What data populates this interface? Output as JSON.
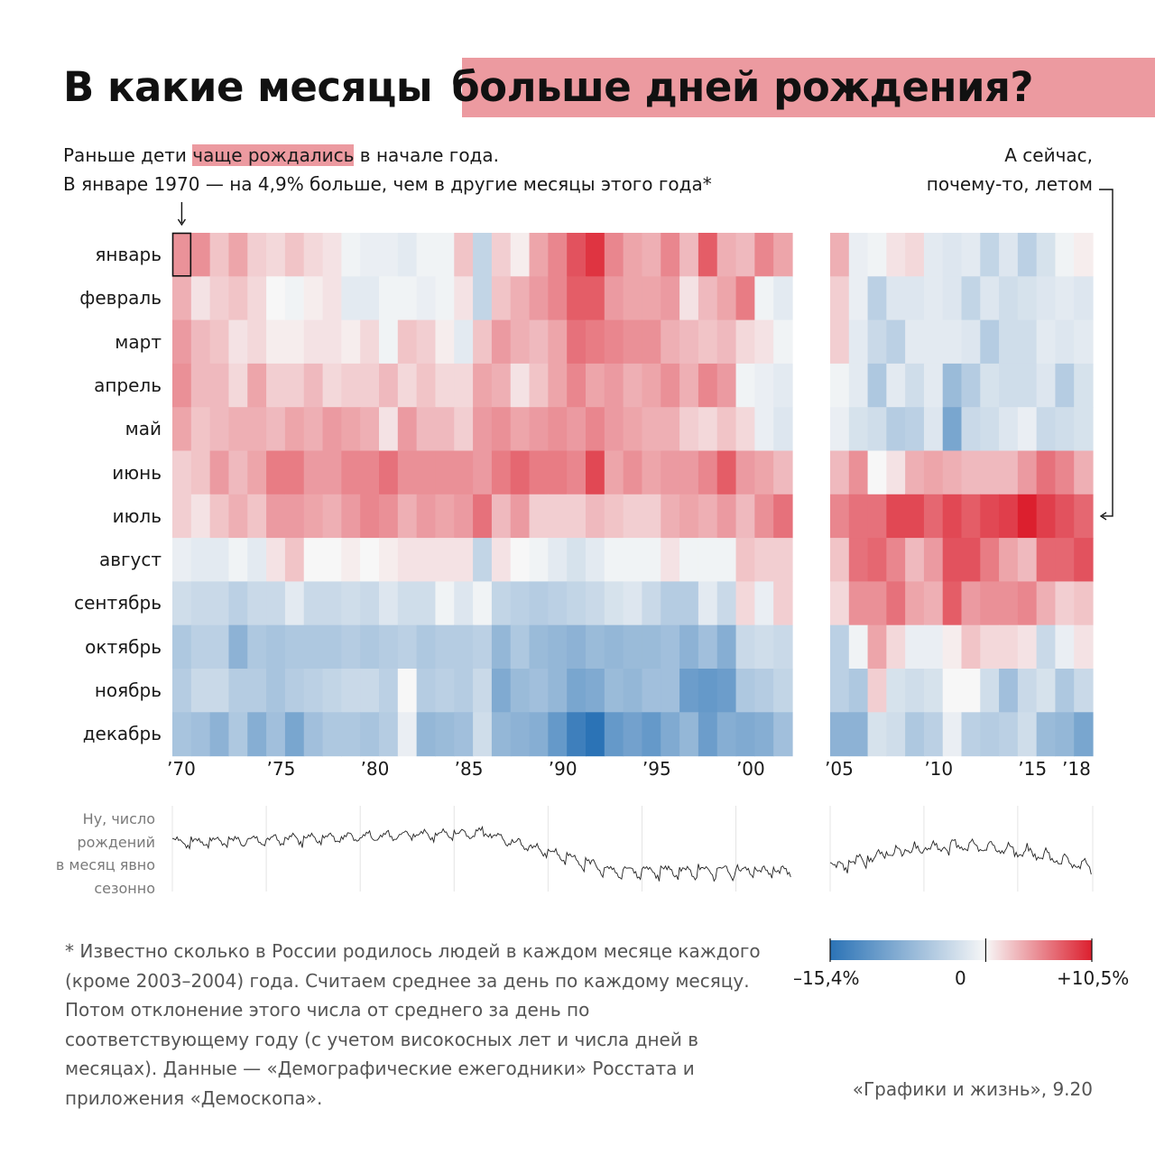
{
  "title": {
    "plain": "В какие месяцы",
    "highlight": "больше дней рождения?"
  },
  "subtitle_left": {
    "line1_a": "Раньше дети ",
    "line1_hl": "чаще рождались",
    "line1_b": " в начале года.",
    "line2": "В январе 1970 — на 4,9% больше, чем в другие месяцы этого года*"
  },
  "subtitle_right": {
    "line1": "А сейчас,",
    "line2": "почему-то, летом"
  },
  "sparkline_note": [
    "Ну, число",
    "рождений",
    "в месяц явно",
    "сезонно"
  ],
  "footnote": "* Известно сколько в России родилось людей в каждом месяце каждого (кроме 2003–2004) года. Считаем среднее за день по каждому месяцу. Потом отклонение этого числа от среднего за день по соответствующему году (с учетом високосных лет и числа дней в месяцах). Данные — «Демографические ежегодники» Росстата и приложения «Демоскопа».",
  "credit": "«Графики и жизнь», 9.20",
  "colors": {
    "negative": "#2b73b6",
    "neutral": "#f7f7f7",
    "positive": "#dc1f2e",
    "highlight": "#ec9aa0"
  },
  "chart_data": {
    "type": "heatmap",
    "rows": [
      "январь",
      "февраль",
      "март",
      "апрель",
      "май",
      "июнь",
      "июль",
      "август",
      "сентябрь",
      "октябрь",
      "ноябрь",
      "декабрь"
    ],
    "unit": "%",
    "color_range": [
      -15.4,
      10.5
    ],
    "legend_labels": [
      "–15,4%",
      "0",
      "+10,5%"
    ],
    "highlight_cell": {
      "year": 1970,
      "month": "январь",
      "value": 4.9
    },
    "panels": [
      {
        "years": [
          1970,
          1971,
          1972,
          1973,
          1974,
          1975,
          1976,
          1977,
          1978,
          1979,
          1980,
          1981,
          1982,
          1983,
          1984,
          1985,
          1986,
          1987,
          1988,
          1989,
          1990,
          1991,
          1992,
          1993,
          1994,
          1995,
          1996,
          1997,
          1998,
          1999,
          2000,
          2001,
          2002
        ],
        "x_ticks": [
          {
            "year": 1970,
            "label": "’70"
          },
          {
            "year": 1975,
            "label": "’75"
          },
          {
            "year": 1980,
            "label": "’80"
          },
          {
            "year": 1985,
            "label": "’85"
          },
          {
            "year": 1990,
            "label": "’90"
          },
          {
            "year": 1995,
            "label": "’95"
          },
          {
            "year": 2000,
            "label": "’00"
          }
        ],
        "values": [
          [
            4.9,
            5.0,
            2.5,
            4.0,
            2.0,
            1.5,
            2.5,
            1.5,
            1.0,
            -0.5,
            -1.0,
            -1.0,
            -1.5,
            -0.5,
            -0.5,
            2.5,
            -4.0,
            2.0,
            0.5,
            4.0,
            5.5,
            8.0,
            9.5,
            5.5,
            4.0,
            3.5,
            5.5,
            3.0,
            7.5,
            3.5,
            3.0,
            5.5,
            4.0
          ],
          [
            3.5,
            1.0,
            2.0,
            2.5,
            1.5,
            0.0,
            -0.5,
            0.5,
            1.0,
            -1.5,
            -1.5,
            -0.5,
            -0.5,
            -1.0,
            -0.5,
            1.0,
            -4.0,
            2.5,
            3.5,
            4.5,
            5.5,
            7.5,
            7.5,
            4.5,
            4.0,
            4.0,
            4.5,
            1.0,
            3.0,
            4.0,
            6.0,
            -0.5,
            -1.5
          ],
          [
            4.5,
            3.0,
            2.5,
            1.0,
            1.5,
            0.5,
            0.5,
            1.0,
            1.0,
            0.5,
            1.5,
            -0.5,
            2.5,
            2.0,
            0.5,
            -1.5,
            2.5,
            4.5,
            3.5,
            3.0,
            4.0,
            6.5,
            6.0,
            5.5,
            5.0,
            5.0,
            3.5,
            3.0,
            2.5,
            3.0,
            1.5,
            1.0,
            -0.5
          ],
          [
            5.0,
            3.0,
            3.0,
            1.5,
            4.0,
            2.0,
            2.0,
            3.0,
            1.5,
            2.0,
            2.0,
            3.0,
            1.5,
            2.5,
            1.5,
            1.5,
            4.0,
            3.5,
            1.0,
            2.5,
            4.0,
            5.5,
            4.0,
            4.5,
            3.5,
            4.0,
            5.0,
            3.5,
            5.5,
            4.5,
            -0.5,
            -1.0,
            -1.5
          ],
          [
            4.0,
            2.5,
            3.0,
            3.5,
            3.5,
            3.0,
            4.0,
            3.5,
            4.5,
            4.0,
            3.5,
            1.0,
            4.5,
            3.0,
            3.0,
            2.0,
            4.5,
            5.0,
            4.0,
            4.5,
            5.0,
            4.5,
            5.5,
            4.5,
            4.0,
            3.5,
            3.5,
            2.0,
            1.5,
            2.5,
            1.5,
            -1.0,
            -2.0
          ],
          [
            2.0,
            2.5,
            4.5,
            3.0,
            4.0,
            6.0,
            6.0,
            4.5,
            4.5,
            5.5,
            5.5,
            6.5,
            5.0,
            5.0,
            5.0,
            5.0,
            4.5,
            6.0,
            7.0,
            6.0,
            6.0,
            5.5,
            8.5,
            4.0,
            5.0,
            4.0,
            4.5,
            4.5,
            5.5,
            7.5,
            4.5,
            4.0,
            3.0
          ],
          [
            2.0,
            1.0,
            2.5,
            3.5,
            2.5,
            4.5,
            4.5,
            4.0,
            3.5,
            4.5,
            5.5,
            5.0,
            3.5,
            4.5,
            4.0,
            4.5,
            6.5,
            3.0,
            4.5,
            2.0,
            2.0,
            2.0,
            3.0,
            2.5,
            2.0,
            2.0,
            3.5,
            4.0,
            3.5,
            4.5,
            3.0,
            5.0,
            6.5
          ],
          [
            -1.0,
            -1.5,
            -1.5,
            -0.5,
            -1.5,
            1.0,
            2.5,
            0.0,
            0.0,
            0.5,
            0.0,
            0.5,
            1.0,
            1.0,
            1.0,
            1.0,
            -4.0,
            1.0,
            0.0,
            -0.5,
            -1.5,
            -2.5,
            -1.5,
            -0.5,
            -0.5,
            -0.5,
            1.0,
            -0.5,
            -0.5,
            -0.5,
            2.5,
            2.0,
            2.0
          ],
          [
            -3.0,
            -3.5,
            -3.5,
            -4.5,
            -3.5,
            -3.5,
            -1.5,
            -3.5,
            -3.5,
            -3.0,
            -3.5,
            -2.0,
            -3.0,
            -3.0,
            -0.5,
            -2.0,
            -0.5,
            -4.0,
            -4.5,
            -5.0,
            -4.5,
            -4.0,
            -3.5,
            -2.5,
            -2.0,
            -3.5,
            -5.0,
            -5.0,
            -1.5,
            -3.5,
            1.5,
            -1.0,
            2.0
          ],
          [
            -5.5,
            -4.5,
            -4.5,
            -8.0,
            -5.5,
            -6.0,
            -5.5,
            -5.5,
            -5.5,
            -5.0,
            -5.5,
            -5.0,
            -4.5,
            -5.5,
            -5.0,
            -5.0,
            -4.5,
            -7.5,
            -5.5,
            -7.0,
            -7.5,
            -8.0,
            -7.0,
            -7.5,
            -7.0,
            -7.0,
            -6.5,
            -8.0,
            -6.5,
            -8.5,
            -3.5,
            -3.0,
            -3.5
          ],
          [
            -5.0,
            -3.5,
            -3.5,
            -5.0,
            -5.0,
            -6.0,
            -5.0,
            -4.5,
            -4.0,
            -3.5,
            -3.5,
            -4.5,
            0.0,
            -5.0,
            -4.5,
            -5.0,
            -3.5,
            -9.0,
            -7.0,
            -6.5,
            -7.5,
            -9.5,
            -9.0,
            -7.0,
            -7.5,
            -6.5,
            -6.5,
            -10.5,
            -11.0,
            -10.5,
            -5.5,
            -5.0,
            -4.0
          ],
          [
            -6.0,
            -6.5,
            -8.0,
            -5.5,
            -8.5,
            -6.5,
            -9.5,
            -6.5,
            -5.5,
            -5.5,
            -6.0,
            -5.0,
            -1.0,
            -7.5,
            -7.0,
            -6.5,
            -3.0,
            -7.5,
            -8.0,
            -8.5,
            -11.0,
            -14.0,
            -15.4,
            -11.0,
            -10.0,
            -11.0,
            -9.0,
            -7.5,
            -10.5,
            -8.5,
            -9.0,
            -8.5,
            -6.5
          ]
        ]
      },
      {
        "years": [
          2005,
          2006,
          2007,
          2008,
          2009,
          2010,
          2011,
          2012,
          2013,
          2014,
          2015,
          2016,
          2017,
          2018
        ],
        "x_ticks": [
          {
            "year": 2005,
            "label": "’05"
          },
          {
            "year": 2010,
            "label": "’10"
          },
          {
            "year": 2015,
            "label": "’15"
          },
          {
            "year": 2018,
            "label": "’18"
          }
        ],
        "values": [
          [
            3.5,
            -1.0,
            -0.5,
            1.0,
            1.5,
            -1.5,
            -2.0,
            -1.5,
            -4.0,
            -2.0,
            -4.5,
            -2.5,
            -0.5,
            0.5
          ],
          [
            2.0,
            -1.0,
            -4.5,
            -2.0,
            -2.0,
            -1.5,
            -2.0,
            -4.0,
            -2.0,
            -3.0,
            -2.5,
            -2.0,
            -1.5,
            -2.0
          ],
          [
            2.0,
            -1.5,
            -3.5,
            -4.5,
            -1.5,
            -1.5,
            -1.5,
            -2.0,
            -5.0,
            -3.0,
            -3.0,
            -1.5,
            -2.0,
            -1.5
          ],
          [
            -0.5,
            -1.5,
            -5.5,
            -1.5,
            -3.0,
            -1.5,
            -7.0,
            -5.0,
            -2.5,
            -3.0,
            -3.0,
            -2.0,
            -5.0,
            -2.5
          ],
          [
            -1.0,
            -2.5,
            -3.0,
            -5.0,
            -4.5,
            -2.0,
            -9.5,
            -3.5,
            -3.0,
            -2.0,
            -1.0,
            -3.5,
            -3.0,
            -2.5
          ],
          [
            3.0,
            5.0,
            0.0,
            1.0,
            3.5,
            4.0,
            3.5,
            3.0,
            3.0,
            3.0,
            4.5,
            6.5,
            5.5,
            3.5
          ],
          [
            5.5,
            6.5,
            6.5,
            8.5,
            8.5,
            7.0,
            8.5,
            7.5,
            8.5,
            9.0,
            10.5,
            9.0,
            8.0,
            7.0
          ],
          [
            2.5,
            6.5,
            7.0,
            5.5,
            3.0,
            4.5,
            8.0,
            8.0,
            6.0,
            4.0,
            3.0,
            7.0,
            7.0,
            8.0
          ],
          [
            1.5,
            5.0,
            5.0,
            6.5,
            4.0,
            3.5,
            7.5,
            4.5,
            5.0,
            5.0,
            5.5,
            3.5,
            2.0,
            2.5
          ],
          [
            -4.5,
            -0.5,
            4.0,
            1.5,
            -1.0,
            -1.0,
            0.5,
            2.5,
            1.5,
            1.5,
            1.0,
            -3.5,
            -1.0,
            1.0
          ],
          [
            -4.5,
            -5.5,
            2.0,
            -2.5,
            -3.0,
            -2.5,
            0.0,
            0.0,
            -3.0,
            -6.5,
            -3.5,
            -2.5,
            -5.5,
            -3.5
          ],
          [
            -8.0,
            -8.0,
            -2.5,
            -3.0,
            -5.5,
            -4.5,
            -1.0,
            -4.5,
            -5.0,
            -4.5,
            -3.0,
            -7.0,
            -7.5,
            -9.5
          ]
        ]
      }
    ],
    "sparkline": {
      "description_label": "число рождений в месяц"
    }
  }
}
